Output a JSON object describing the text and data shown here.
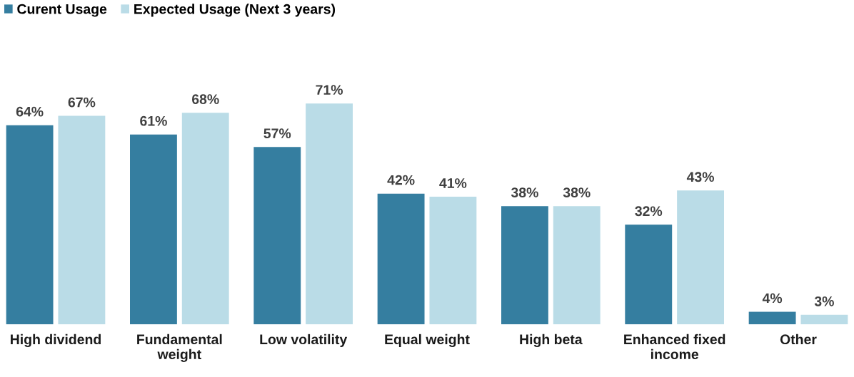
{
  "chart_data": {
    "type": "bar",
    "categories": [
      "High dividend",
      "Fundamental\nweight",
      "Low volatility",
      "Equal weight",
      "High beta",
      "Enhanced fixed\nincome",
      "Other"
    ],
    "series": [
      {
        "name": "Curent Usage",
        "color": "#357ea0",
        "values": [
          64,
          61,
          57,
          42,
          38,
          32,
          4
        ],
        "value_labels": [
          "64%",
          "61%",
          "57%",
          "42%",
          "38%",
          "32%",
          "4%"
        ]
      },
      {
        "name": "Expected Usage (Next 3 years)",
        "color": "#badce7",
        "values": [
          67,
          68,
          71,
          41,
          38,
          43,
          3
        ],
        "value_labels": [
          "67%",
          "68%",
          "71%",
          "41%",
          "38%",
          "43%",
          "3%"
        ]
      }
    ],
    "legend": "top left",
    "grid": false,
    "tick_labels": "x"
  }
}
